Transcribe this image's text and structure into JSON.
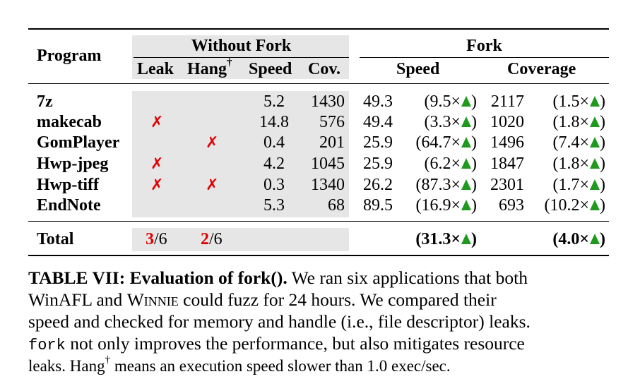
{
  "table": {
    "header": {
      "program": "Program",
      "without_fork": "Without Fork",
      "fork": "Fork",
      "leak": "Leak",
      "hang": "Hang",
      "hang_sup": "†",
      "speed": "Speed",
      "cov": "Cov.",
      "fork_speed": "Speed",
      "fork_coverage": "Coverage"
    },
    "mark": "✗",
    "rows": [
      {
        "program": "7z",
        "leak": false,
        "hang": false,
        "speed": "5.2",
        "cov": "1430",
        "fork_speed": "49.3",
        "speed_ratio": "(9.5×",
        "fork_cov": "2117",
        "cov_ratio": "(1.5×"
      },
      {
        "program": "makecab",
        "leak": true,
        "hang": false,
        "speed": "14.8",
        "cov": "576",
        "fork_speed": "49.4",
        "speed_ratio": "(3.3×",
        "fork_cov": "1020",
        "cov_ratio": "(1.8×"
      },
      {
        "program": "GomPlayer",
        "leak": false,
        "hang": true,
        "speed": "0.4",
        "cov": "201",
        "fork_speed": "25.9",
        "speed_ratio": "(64.7×",
        "fork_cov": "1496",
        "cov_ratio": "(7.4×"
      },
      {
        "program": "Hwp-jpeg",
        "leak": true,
        "hang": false,
        "speed": "4.2",
        "cov": "1045",
        "fork_speed": "25.9",
        "speed_ratio": "(6.2×",
        "fork_cov": "1847",
        "cov_ratio": "(1.8×"
      },
      {
        "program": "Hwp-tiff",
        "leak": true,
        "hang": true,
        "speed": "0.3",
        "cov": "1340",
        "fork_speed": "26.2",
        "speed_ratio": "(87.3×",
        "fork_cov": "2301",
        "cov_ratio": "(1.7×"
      },
      {
        "program": "EndNote",
        "leak": false,
        "hang": false,
        "speed": "5.3",
        "cov": "68",
        "fork_speed": "89.5",
        "speed_ratio": "(16.9×",
        "fork_cov": "693",
        "cov_ratio": "(10.2×"
      }
    ],
    "total": {
      "label": "Total",
      "leak_num": "3",
      "leak_den": "/6",
      "hang_num": "2",
      "hang_den": "/6",
      "speed_ratio": "(31.3×",
      "cov_ratio": "(4.0×"
    },
    "close_paren": ")"
  },
  "caption": {
    "label": "TABLE VII: Evaluation of fork().",
    "line1_rest": " We ran six applications that both",
    "line2_a": "WinAFL and ",
    "line2_winnie": "Winnie",
    "line2_b": " could fuzz for 24 hours. We compared their",
    "line3": "speed and checked for memory and handle (i.e., file descriptor) leaks.",
    "line4_code": "fork",
    "line4_rest": " not only improves the performance, but also mitigates resource",
    "line5_a": "leaks. Hang",
    "line5_sup": "†",
    "line5_b": " means an execution speed slower than 1.0 exec/sec."
  }
}
